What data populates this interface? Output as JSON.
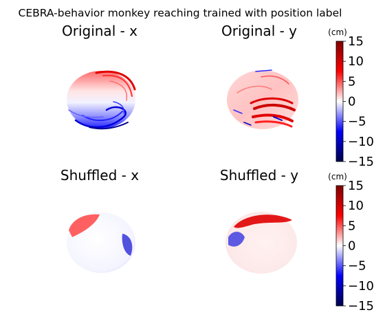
{
  "figure": {
    "suptitle": "CEBRA-behavior monkey reaching trained with position label"
  },
  "colormap": {
    "name": "seismic",
    "stops": [
      "#00004c",
      "#0000ff",
      "#ffffff",
      "#ff0000",
      "#800000"
    ]
  },
  "colorbar": {
    "unit_label": "(cm)",
    "ticks": [
      "15",
      "10",
      "5",
      "0",
      "−5",
      "−10",
      "−15"
    ],
    "vmin": -15,
    "vmax": 15
  },
  "chart_data": [
    {
      "type": "scatter",
      "title": "Original - x",
      "description_colorvar": "x position",
      "axis": "off",
      "grid": false,
      "color_range": [
        -15,
        15
      ],
      "pattern": "vertical gradient: red at top, white middle, blue at bottom, with blue looping trajectories lower and red streaks upper right"
    },
    {
      "type": "scatter",
      "title": "Original - y",
      "description_colorvar": "y position",
      "axis": "off",
      "grid": false,
      "color_range": [
        -15,
        15
      ],
      "pattern": "mostly light red sphere with dense deep-red trajectory bundles on right side, blue specks scattered"
    },
    {
      "type": "scatter",
      "title": "Shuffled - x",
      "description_colorvar": "x position (shuffled labels)",
      "axis": "off",
      "grid": false,
      "color_range": [
        -15,
        15
      ],
      "pattern": "red patch at upper left, blue patch at right edge, otherwise white-pale"
    },
    {
      "type": "scatter",
      "title": "Shuffled - y",
      "description_colorvar": "y position (shuffled labels)",
      "axis": "off",
      "grid": false,
      "color_range": [
        -15,
        15
      ],
      "pattern": "red band along top rim, blue patch at left, otherwise pale"
    }
  ]
}
